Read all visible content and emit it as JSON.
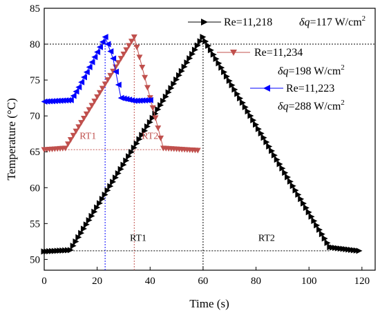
{
  "chart_data": {
    "type": "line",
    "title": "",
    "xlabel": "Time (s)",
    "ylabel": "Temperature (°C)",
    "xlim": [
      0,
      125
    ],
    "ylim": [
      48.5,
      85
    ],
    "xticks": [
      0,
      20,
      40,
      60,
      80,
      100,
      120
    ],
    "yticks": [
      50,
      55,
      60,
      65,
      70,
      75,
      80,
      85
    ],
    "grid": false,
    "legend_position": "top-right",
    "series": [
      {
        "name": "Re=11,218 δq=117 W/cm²",
        "legend_re": "Re=11,218",
        "legend_dq": "δq=117 W/cm",
        "legend_sup": "2",
        "color": "#000000",
        "marker": "triangle-right",
        "x": [
          0,
          10,
          60,
          108,
          119
        ],
        "y": [
          51.1,
          51.3,
          81.0,
          51.7,
          51.2
        ]
      },
      {
        "name": "Re=11,234 δq=198 W/cm²",
        "legend_re": "Re=11,234",
        "legend_dq": "δq=198 W/cm",
        "legend_sup": "2",
        "color": "#c0504d",
        "marker": "triangle-down",
        "x": [
          0,
          8,
          34,
          45,
          58
        ],
        "y": [
          65.3,
          65.5,
          81.0,
          65.5,
          65.2
        ]
      },
      {
        "name": "Re=11,223 δq=288 W/cm²",
        "legend_re": "Re=11,223",
        "legend_dq": "δq=288 W/cm",
        "legend_sup": "2",
        "color": "#0000ff",
        "marker": "triangle-left",
        "x": [
          0,
          10,
          13,
          23,
          26,
          29,
          34,
          40
        ],
        "y": [
          72.0,
          72.2,
          74.0,
          81.0,
          78.0,
          72.5,
          72.1,
          72.2
        ]
      }
    ],
    "reference_lines": [
      {
        "orientation": "h",
        "y": 80,
        "x_from": 0,
        "x_to": 125,
        "color": "#000000"
      },
      {
        "orientation": "v",
        "x": 60,
        "y_from": 48.5,
        "y_to": 81,
        "color": "#000000"
      },
      {
        "orientation": "h",
        "y": 51.2,
        "x_from": 10,
        "x_to": 108,
        "color": "#000000"
      },
      {
        "orientation": "h",
        "y": 65.3,
        "x_from": 8,
        "x_to": 46,
        "color": "#c0504d"
      },
      {
        "orientation": "v",
        "x": 34,
        "y_from": 48.5,
        "y_to": 81,
        "color": "#c0504d"
      },
      {
        "orientation": "v",
        "x": 23,
        "y_from": 48.5,
        "y_to": 81,
        "color": "#0000ff"
      }
    ],
    "annotations": [
      {
        "text": "RT1",
        "x": 16.5,
        "y": 66.8,
        "color": "#c0504d"
      },
      {
        "text": "RT2",
        "x": 40,
        "y": 66.8,
        "color": "#c0504d"
      },
      {
        "text": "RT1",
        "x": 35.5,
        "y": 52.6,
        "color": "#000000"
      },
      {
        "text": "RT2",
        "x": 84,
        "y": 52.6,
        "color": "#000000"
      }
    ]
  }
}
